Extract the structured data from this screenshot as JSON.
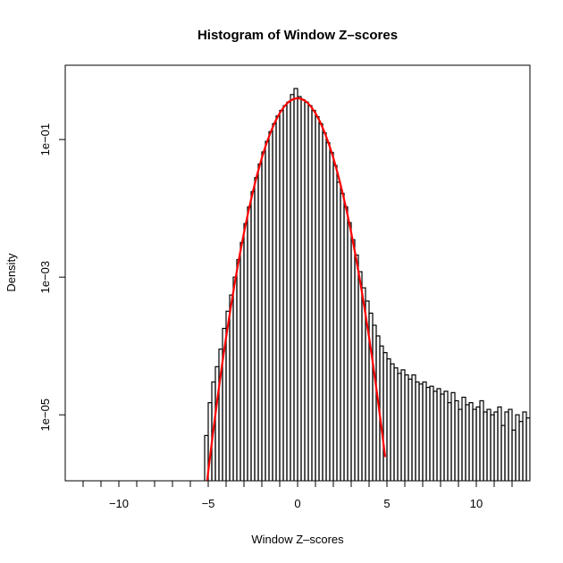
{
  "chart_data": {
    "type": "histogram",
    "title": "Histogram of Window Z–scores",
    "xlabel": "Window Z–scores",
    "ylabel": "Density",
    "y_scale": "log",
    "xlim": [
      -13,
      13
    ],
    "ylim": [
      1.1e-06,
      1.2
    ],
    "x_ticks": [
      -12,
      -11,
      -10,
      -9,
      -8,
      -7,
      -6,
      -5,
      -4,
      -3,
      -2,
      -1,
      0,
      1,
      2,
      3,
      4,
      5,
      6,
      7,
      8,
      9,
      10,
      11,
      12
    ],
    "x_tick_labels": [
      {
        "value": -10,
        "label": "−10"
      },
      {
        "value": -5,
        "label": "−5"
      },
      {
        "value": 0,
        "label": "0"
      },
      {
        "value": 5,
        "label": "5"
      },
      {
        "value": 10,
        "label": "10"
      }
    ],
    "y_tick_labels": [
      {
        "value": 0.1,
        "label": "1e−01"
      },
      {
        "value": 0.001,
        "label": "1e−03"
      },
      {
        "value": 1e-05,
        "label": "1e−05"
      }
    ],
    "grid": false,
    "histogram": {
      "color": "#000000",
      "bin_width": 0.2,
      "bin_start": -5.2,
      "densities": [
        5e-06,
        1.5e-05,
        3e-05,
        5e-05,
        9e-05,
        0.00018,
        0.00032,
        0.00055,
        0.001,
        0.0018,
        0.0032,
        0.006,
        0.0105,
        0.0175,
        0.028,
        0.044,
        0.066,
        0.094,
        0.13,
        0.17,
        0.22,
        0.265,
        0.31,
        0.35,
        0.45,
        0.55,
        0.42,
        0.38,
        0.35,
        0.31,
        0.265,
        0.215,
        0.17,
        0.125,
        0.09,
        0.065,
        0.042,
        0.024,
        0.0165,
        0.0105,
        0.0062,
        0.0035,
        0.0021,
        0.0012,
        0.0007,
        0.00045,
        0.0003,
        0.0002,
        0.00014,
        0.0001,
        8e-05,
        6.5e-05,
        5.5e-05,
        4.8e-05,
        4e-05,
        4.5e-05,
        3.8e-05,
        3.3e-05,
        3.8e-05,
        3e-05,
        2.8e-05,
        3e-05,
        2.5e-05,
        2.6e-05,
        2.2e-05,
        2.4e-05,
        2e-05,
        2.2e-05,
        1.5e-05,
        2.1e-05,
        1.6e-05,
        1.2e-05,
        1.8e-05,
        1.4e-05,
        1.5e-05,
        1.2e-05,
        1.3e-05,
        1.6e-05,
        1.1e-05,
        1.2e-05,
        1e-05,
        1.1e-05,
        1.3e-05,
        7e-06,
        1.1e-05,
        1.2e-05,
        6e-06,
        1e-05,
        8e-06,
        1.1e-05,
        9e-06
      ]
    },
    "density_curve": {
      "color": "#ff0000",
      "x": [
        -5.1,
        -5.0,
        -4.75,
        -4.5,
        -4.25,
        -4.0,
        -3.75,
        -3.5,
        -3.25,
        -3.0,
        -2.75,
        -2.5,
        -2.25,
        -2.0,
        -1.75,
        -1.5,
        -1.25,
        -1.0,
        -0.75,
        -0.5,
        -0.25,
        0,
        0.25,
        0.5,
        0.75,
        1.0,
        1.25,
        1.5,
        1.75,
        2.0,
        2.25,
        2.5,
        2.75,
        3.0,
        3.25,
        3.5,
        3.75,
        4.0,
        4.25,
        4.5,
        4.75,
        4.9
      ],
      "y": [
        8.9e-07,
        1.49e-06,
        5e-06,
        1.6e-05,
        4.8e-05,
        0.000134,
        0.00035,
        0.00087,
        0.00203,
        0.00443,
        0.0091,
        0.0175,
        0.0317,
        0.054,
        0.0863,
        0.1295,
        0.1826,
        0.242,
        0.301,
        0.352,
        0.387,
        0.399,
        0.387,
        0.352,
        0.301,
        0.242,
        0.1826,
        0.1295,
        0.0863,
        0.054,
        0.0317,
        0.0175,
        0.0091,
        0.00443,
        0.00203,
        0.00087,
        0.00035,
        0.000134,
        4.8e-05,
        1.6e-05,
        5e-06,
        2.44e-06
      ]
    }
  }
}
